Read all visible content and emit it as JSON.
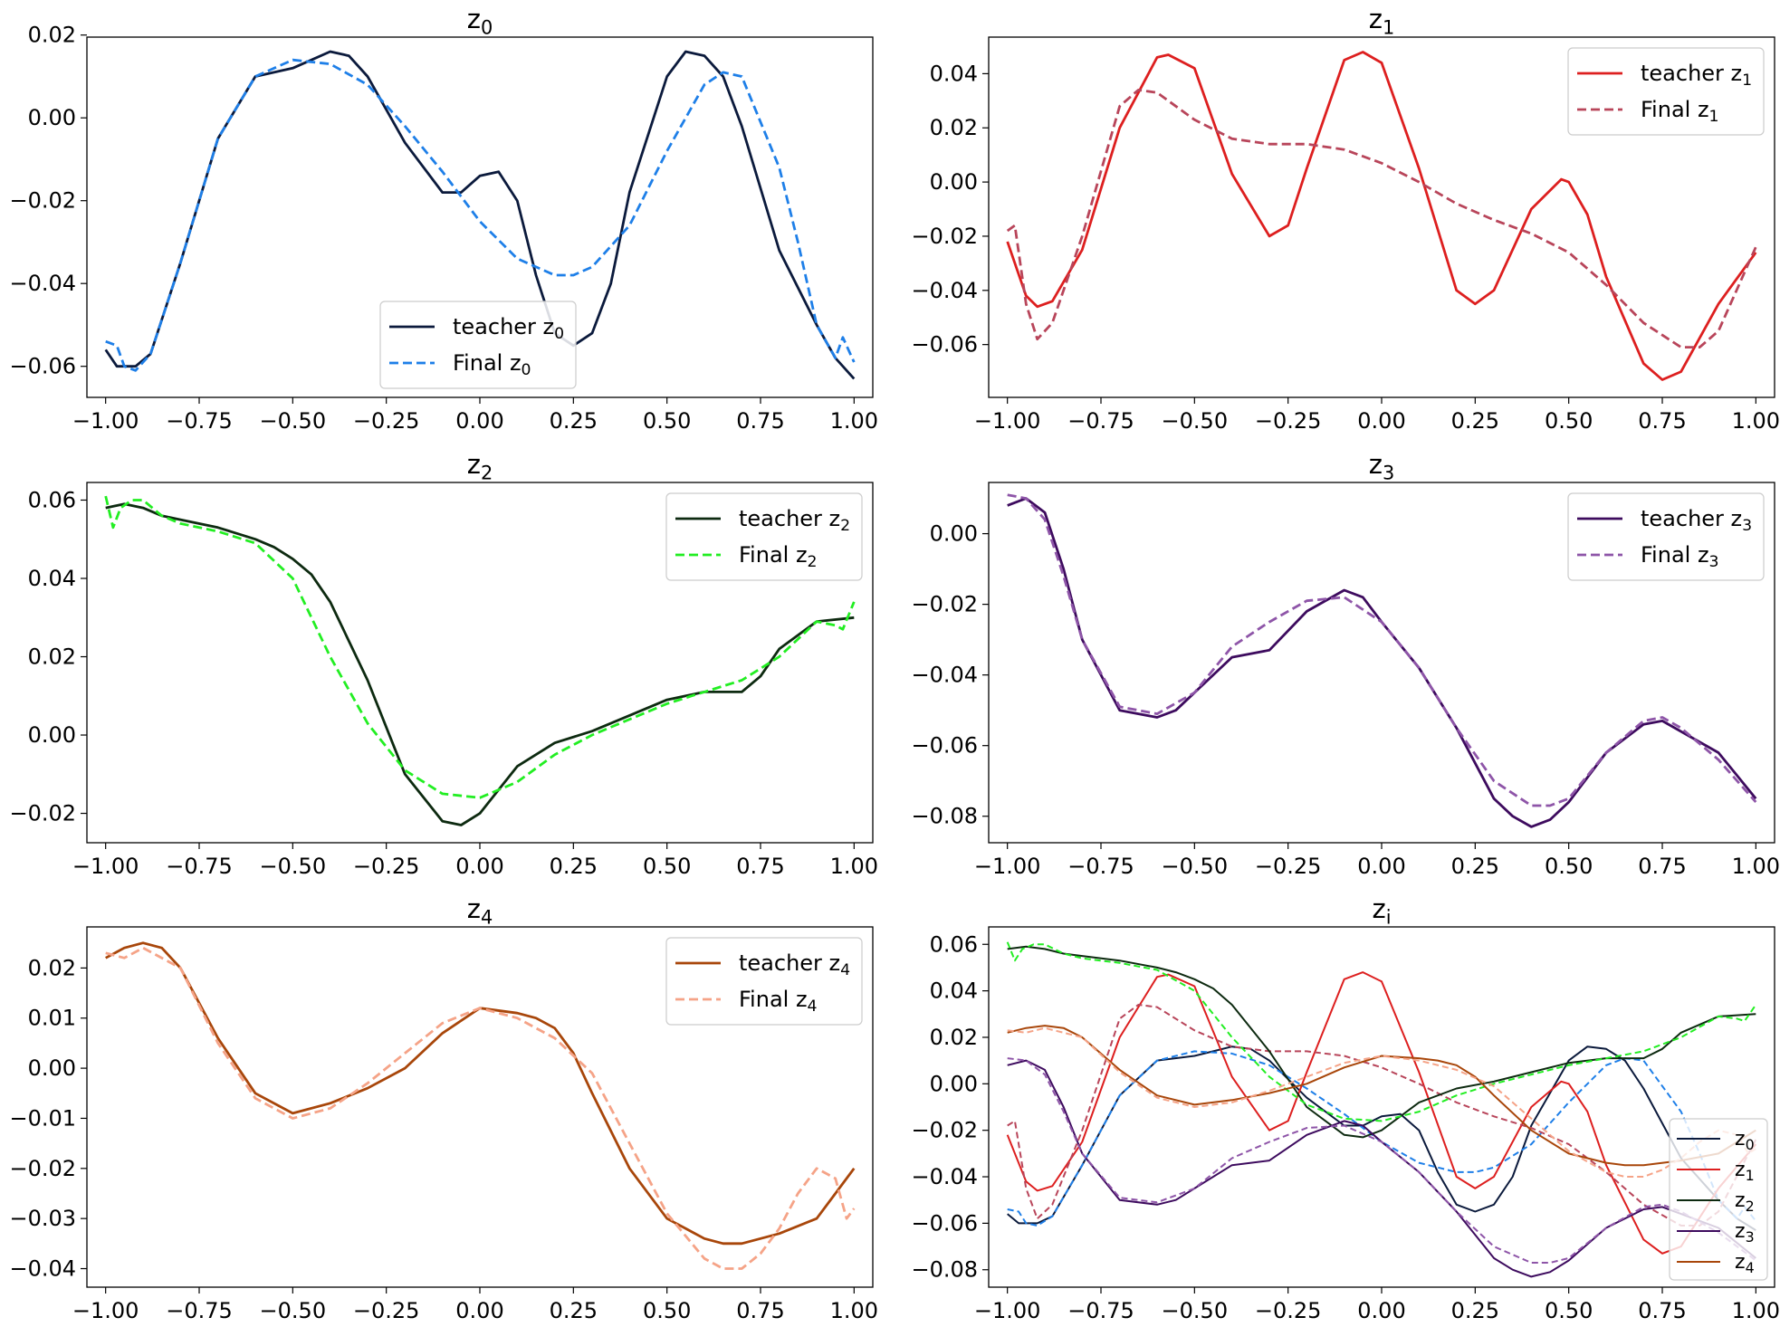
{
  "colors": {
    "teacher_z0": "#0b1a3c",
    "final_z0": "#1e7fe8",
    "teacher_z1": "#dd1f1f",
    "final_z1": "#b8455a",
    "teacher_z2": "#0d2a10",
    "final_z2": "#22ee22",
    "teacher_z3": "#3d0b5e",
    "final_z3": "#8e55a8",
    "teacher_z4": "#a8460a",
    "final_z4": "#f5a387"
  },
  "chart_data": [
    {
      "id": "z0",
      "type": "line",
      "title_base": "z",
      "title_sub": "0",
      "xlim": [
        -1.05,
        1.05
      ],
      "ylim": [
        -0.0675,
        0.0195
      ],
      "xticks": [
        -1.0,
        -0.75,
        -0.5,
        -0.25,
        0.0,
        0.25,
        0.5,
        0.75,
        1.0
      ],
      "xtick_labels": [
        "−1.00",
        "−0.75",
        "−0.50",
        "−0.25",
        "0.00",
        "0.25",
        "0.50",
        "0.75",
        "1.00"
      ],
      "yticks": [
        -0.06,
        -0.04,
        -0.02,
        0.0,
        0.02
      ],
      "ytick_labels": [
        "−0.06",
        "−0.04",
        "−0.02",
        "0.00",
        "0.02"
      ],
      "legend": "lower-center",
      "series": [
        {
          "name": "teacher",
          "sub": "0",
          "style": "solid",
          "color_key": "teacher_z0",
          "x": [
            -1.0,
            -0.97,
            -0.92,
            -0.88,
            -0.8,
            -0.7,
            -0.6,
            -0.5,
            -0.45,
            -0.4,
            -0.35,
            -0.3,
            -0.2,
            -0.1,
            -0.05,
            0.0,
            0.05,
            0.1,
            0.15,
            0.2,
            0.25,
            0.3,
            0.35,
            0.4,
            0.5,
            0.55,
            0.6,
            0.65,
            0.7,
            0.8,
            0.9,
            0.95,
            1.0
          ],
          "y": [
            -0.056,
            -0.06,
            -0.06,
            -0.057,
            -0.035,
            -0.005,
            0.01,
            0.012,
            0.014,
            0.016,
            0.015,
            0.01,
            -0.006,
            -0.018,
            -0.018,
            -0.014,
            -0.013,
            -0.02,
            -0.038,
            -0.052,
            -0.055,
            -0.052,
            -0.04,
            -0.018,
            0.01,
            0.016,
            0.015,
            0.01,
            -0.002,
            -0.032,
            -0.05,
            -0.058,
            -0.063
          ]
        },
        {
          "name": "Final",
          "sub": "0",
          "style": "dashed",
          "color_key": "final_z0",
          "x": [
            -1.0,
            -0.97,
            -0.95,
            -0.92,
            -0.88,
            -0.8,
            -0.7,
            -0.6,
            -0.5,
            -0.4,
            -0.3,
            -0.2,
            -0.1,
            0.0,
            0.1,
            0.2,
            0.25,
            0.3,
            0.4,
            0.5,
            0.6,
            0.65,
            0.7,
            0.8,
            0.85,
            0.9,
            0.95,
            0.97,
            1.0
          ],
          "y": [
            -0.054,
            -0.055,
            -0.06,
            -0.061,
            -0.057,
            -0.035,
            -0.005,
            0.01,
            0.014,
            0.013,
            0.008,
            -0.002,
            -0.013,
            -0.025,
            -0.034,
            -0.038,
            -0.038,
            -0.036,
            -0.026,
            -0.008,
            0.008,
            0.011,
            0.01,
            -0.012,
            -0.03,
            -0.05,
            -0.058,
            -0.053,
            -0.059
          ]
        }
      ]
    },
    {
      "id": "z1",
      "type": "line",
      "title_base": "z",
      "title_sub": "1",
      "xlim": [
        -1.05,
        1.05
      ],
      "ylim": [
        -0.0795,
        0.0535
      ],
      "xticks": [
        -1.0,
        -0.75,
        -0.5,
        -0.25,
        0.0,
        0.25,
        0.5,
        0.75,
        1.0
      ],
      "xtick_labels": [
        "−1.00",
        "−0.75",
        "−0.50",
        "−0.25",
        "0.00",
        "0.25",
        "0.50",
        "0.75",
        "1.00"
      ],
      "yticks": [
        -0.06,
        -0.04,
        -0.02,
        0.0,
        0.02,
        0.04
      ],
      "ytick_labels": [
        "−0.06",
        "−0.04",
        "−0.02",
        "0.00",
        "0.02",
        "0.04"
      ],
      "legend": "top-right",
      "series": [
        {
          "name": "teacher",
          "sub": "1",
          "style": "solid",
          "color_key": "teacher_z1",
          "x": [
            -1.0,
            -0.95,
            -0.92,
            -0.88,
            -0.8,
            -0.7,
            -0.6,
            -0.57,
            -0.5,
            -0.4,
            -0.3,
            -0.25,
            -0.2,
            -0.1,
            -0.05,
            0.0,
            0.1,
            0.2,
            0.25,
            0.3,
            0.4,
            0.48,
            0.5,
            0.55,
            0.6,
            0.7,
            0.75,
            0.8,
            0.9,
            1.0
          ],
          "y": [
            -0.022,
            -0.042,
            -0.046,
            -0.044,
            -0.025,
            0.02,
            0.046,
            0.047,
            0.042,
            0.003,
            -0.02,
            -0.016,
            0.005,
            0.045,
            0.048,
            0.044,
            0.005,
            -0.04,
            -0.045,
            -0.04,
            -0.01,
            0.001,
            0.0,
            -0.012,
            -0.035,
            -0.067,
            -0.073,
            -0.07,
            -0.045,
            -0.026
          ]
        },
        {
          "name": "Final",
          "sub": "1",
          "style": "dashed",
          "color_key": "final_z1",
          "x": [
            -1.0,
            -0.98,
            -0.95,
            -0.92,
            -0.88,
            -0.8,
            -0.7,
            -0.65,
            -0.6,
            -0.5,
            -0.4,
            -0.3,
            -0.2,
            -0.1,
            0.0,
            0.1,
            0.2,
            0.3,
            0.4,
            0.5,
            0.6,
            0.7,
            0.8,
            0.85,
            0.9,
            1.0
          ],
          "y": [
            -0.018,
            -0.016,
            -0.045,
            -0.058,
            -0.052,
            -0.02,
            0.028,
            0.034,
            0.033,
            0.023,
            0.016,
            0.014,
            0.014,
            0.012,
            0.007,
            0.0,
            -0.008,
            -0.014,
            -0.019,
            -0.026,
            -0.038,
            -0.052,
            -0.061,
            -0.061,
            -0.055,
            -0.024
          ]
        }
      ]
    },
    {
      "id": "z2",
      "type": "line",
      "title_base": "z",
      "title_sub": "2",
      "xlim": [
        -1.05,
        1.05
      ],
      "ylim": [
        -0.0275,
        0.0645
      ],
      "xticks": [
        -1.0,
        -0.75,
        -0.5,
        -0.25,
        0.0,
        0.25,
        0.5,
        0.75,
        1.0
      ],
      "xtick_labels": [
        "−1.00",
        "−0.75",
        "−0.50",
        "−0.25",
        "0.00",
        "0.25",
        "0.50",
        "0.75",
        "1.00"
      ],
      "yticks": [
        -0.02,
        0.0,
        0.02,
        0.04,
        0.06
      ],
      "ytick_labels": [
        "−0.02",
        "0.00",
        "0.02",
        "0.04",
        "0.06"
      ],
      "legend": "top-right",
      "series": [
        {
          "name": "teacher",
          "sub": "2",
          "style": "solid",
          "color_key": "teacher_z2",
          "x": [
            -1.0,
            -0.95,
            -0.9,
            -0.85,
            -0.8,
            -0.7,
            -0.6,
            -0.55,
            -0.5,
            -0.45,
            -0.4,
            -0.3,
            -0.2,
            -0.1,
            -0.05,
            0.0,
            0.1,
            0.2,
            0.3,
            0.4,
            0.5,
            0.6,
            0.7,
            0.75,
            0.8,
            0.9,
            1.0
          ],
          "y": [
            0.058,
            0.059,
            0.058,
            0.056,
            0.055,
            0.053,
            0.05,
            0.048,
            0.045,
            0.041,
            0.034,
            0.014,
            -0.01,
            -0.022,
            -0.023,
            -0.02,
            -0.008,
            -0.002,
            0.001,
            0.005,
            0.009,
            0.011,
            0.011,
            0.015,
            0.022,
            0.029,
            0.03
          ]
        },
        {
          "name": "Final",
          "sub": "2",
          "style": "dashed",
          "color_key": "final_z2",
          "x": [
            -1.0,
            -0.98,
            -0.96,
            -0.93,
            -0.9,
            -0.85,
            -0.8,
            -0.7,
            -0.6,
            -0.5,
            -0.4,
            -0.3,
            -0.2,
            -0.1,
            0.0,
            0.1,
            0.2,
            0.3,
            0.4,
            0.5,
            0.6,
            0.7,
            0.8,
            0.9,
            0.95,
            0.97,
            1.0
          ],
          "y": [
            0.061,
            0.053,
            0.058,
            0.06,
            0.06,
            0.056,
            0.054,
            0.052,
            0.049,
            0.04,
            0.02,
            0.003,
            -0.009,
            -0.015,
            -0.016,
            -0.012,
            -0.005,
            0.0,
            0.004,
            0.008,
            0.011,
            0.014,
            0.02,
            0.029,
            0.028,
            0.027,
            0.034
          ]
        }
      ]
    },
    {
      "id": "z3",
      "type": "line",
      "title_base": "z",
      "title_sub": "3",
      "xlim": [
        -1.05,
        1.05
      ],
      "ylim": [
        -0.0875,
        0.0145
      ],
      "xticks": [
        -1.0,
        -0.75,
        -0.5,
        -0.25,
        0.0,
        0.25,
        0.5,
        0.75,
        1.0
      ],
      "xtick_labels": [
        "−1.00",
        "−0.75",
        "−0.50",
        "−0.25",
        "0.00",
        "0.25",
        "0.50",
        "0.75",
        "1.00"
      ],
      "yticks": [
        -0.08,
        -0.06,
        -0.04,
        -0.02,
        0.0
      ],
      "ytick_labels": [
        "−0.08",
        "−0.06",
        "−0.04",
        "−0.02",
        "0.00"
      ],
      "legend": "top-right",
      "series": [
        {
          "name": "teacher",
          "sub": "3",
          "style": "solid",
          "color_key": "teacher_z3",
          "x": [
            -1.0,
            -0.95,
            -0.9,
            -0.85,
            -0.8,
            -0.7,
            -0.6,
            -0.55,
            -0.5,
            -0.4,
            -0.3,
            -0.2,
            -0.1,
            -0.05,
            0.0,
            0.1,
            0.2,
            0.3,
            0.35,
            0.4,
            0.45,
            0.5,
            0.6,
            0.7,
            0.75,
            0.8,
            0.9,
            1.0
          ],
          "y": [
            0.008,
            0.01,
            0.006,
            -0.01,
            -0.03,
            -0.05,
            -0.052,
            -0.05,
            -0.045,
            -0.035,
            -0.033,
            -0.022,
            -0.016,
            -0.018,
            -0.025,
            -0.038,
            -0.055,
            -0.075,
            -0.08,
            -0.083,
            -0.081,
            -0.076,
            -0.062,
            -0.054,
            -0.053,
            -0.056,
            -0.062,
            -0.075
          ]
        },
        {
          "name": "Final",
          "sub": "3",
          "style": "dashed",
          "color_key": "final_z3",
          "x": [
            -1.0,
            -0.95,
            -0.9,
            -0.85,
            -0.8,
            -0.7,
            -0.6,
            -0.5,
            -0.4,
            -0.3,
            -0.2,
            -0.1,
            0.0,
            0.1,
            0.2,
            0.3,
            0.4,
            0.45,
            0.5,
            0.6,
            0.7,
            0.75,
            0.8,
            0.9,
            1.0
          ],
          "y": [
            0.011,
            0.01,
            0.004,
            -0.012,
            -0.03,
            -0.049,
            -0.051,
            -0.045,
            -0.032,
            -0.025,
            -0.019,
            -0.018,
            -0.025,
            -0.038,
            -0.055,
            -0.07,
            -0.077,
            -0.077,
            -0.075,
            -0.062,
            -0.053,
            -0.052,
            -0.055,
            -0.064,
            -0.076
          ]
        }
      ]
    },
    {
      "id": "z4",
      "type": "line",
      "title_base": "z",
      "title_sub": "4",
      "xlim": [
        -1.05,
        1.05
      ],
      "ylim": [
        -0.0437,
        0.0282
      ],
      "xticks": [
        -1.0,
        -0.75,
        -0.5,
        -0.25,
        0.0,
        0.25,
        0.5,
        0.75,
        1.0
      ],
      "xtick_labels": [
        "−1.00",
        "−0.75",
        "−0.50",
        "−0.25",
        "0.00",
        "0.25",
        "0.50",
        "0.75",
        "1.00"
      ],
      "yticks": [
        -0.04,
        -0.03,
        -0.02,
        -0.01,
        0.0,
        0.01,
        0.02
      ],
      "ytick_labels": [
        "−0.04",
        "−0.03",
        "−0.02",
        "−0.01",
        "0.00",
        "0.01",
        "0.02"
      ],
      "legend": "top-right",
      "series": [
        {
          "name": "teacher",
          "sub": "4",
          "style": "solid",
          "color_key": "teacher_z4",
          "x": [
            -1.0,
            -0.95,
            -0.9,
            -0.85,
            -0.8,
            -0.7,
            -0.6,
            -0.5,
            -0.4,
            -0.3,
            -0.2,
            -0.1,
            0.0,
            0.1,
            0.15,
            0.2,
            0.25,
            0.3,
            0.4,
            0.5,
            0.6,
            0.65,
            0.7,
            0.8,
            0.9,
            0.95,
            1.0
          ],
          "y": [
            0.022,
            0.024,
            0.025,
            0.024,
            0.02,
            0.006,
            -0.005,
            -0.009,
            -0.007,
            -0.004,
            0.0,
            0.007,
            0.012,
            0.011,
            0.01,
            0.008,
            0.003,
            -0.005,
            -0.02,
            -0.03,
            -0.034,
            -0.035,
            -0.035,
            -0.033,
            -0.03,
            -0.025,
            -0.02
          ]
        },
        {
          "name": "Final",
          "sub": "4",
          "style": "dashed",
          "color_key": "final_z4",
          "x": [
            -1.0,
            -0.95,
            -0.9,
            -0.8,
            -0.7,
            -0.6,
            -0.5,
            -0.4,
            -0.3,
            -0.2,
            -0.1,
            0.0,
            0.1,
            0.2,
            0.3,
            0.4,
            0.5,
            0.6,
            0.65,
            0.7,
            0.75,
            0.8,
            0.85,
            0.9,
            0.95,
            0.98,
            1.0
          ],
          "y": [
            0.023,
            0.022,
            0.024,
            0.02,
            0.005,
            -0.006,
            -0.01,
            -0.008,
            -0.003,
            0.003,
            0.009,
            0.012,
            0.01,
            0.006,
            -0.001,
            -0.015,
            -0.029,
            -0.038,
            -0.04,
            -0.04,
            -0.037,
            -0.032,
            -0.025,
            -0.02,
            -0.022,
            -0.03,
            -0.028
          ]
        }
      ]
    },
    {
      "id": "zi",
      "type": "line",
      "title_base": "z",
      "title_sub": "i",
      "xlim": [
        -1.05,
        1.05
      ],
      "ylim": [
        -0.0875,
        0.0675
      ],
      "xticks": [
        -1.0,
        -0.75,
        -0.5,
        -0.25,
        0.0,
        0.25,
        0.5,
        0.75,
        1.0
      ],
      "xtick_labels": [
        "−1.00",
        "−0.75",
        "−0.50",
        "−0.25",
        "0.00",
        "0.25",
        "0.50",
        "0.75",
        "1.00"
      ],
      "yticks": [
        -0.08,
        -0.06,
        -0.04,
        -0.02,
        0.0,
        0.02,
        0.04,
        0.06
      ],
      "ytick_labels": [
        "−0.08",
        "−0.06",
        "−0.04",
        "−0.02",
        "0.00",
        "0.02",
        "0.04",
        "0.06"
      ],
      "legend": "lower-right",
      "combined": true,
      "legend_entries": [
        {
          "sub": "0",
          "color_key": "teacher_z0"
        },
        {
          "sub": "1",
          "color_key": "teacher_z1"
        },
        {
          "sub": "2",
          "color_key": "teacher_z2"
        },
        {
          "sub": "3",
          "color_key": "teacher_z3"
        },
        {
          "sub": "4",
          "color_key": "teacher_z4"
        }
      ]
    }
  ]
}
